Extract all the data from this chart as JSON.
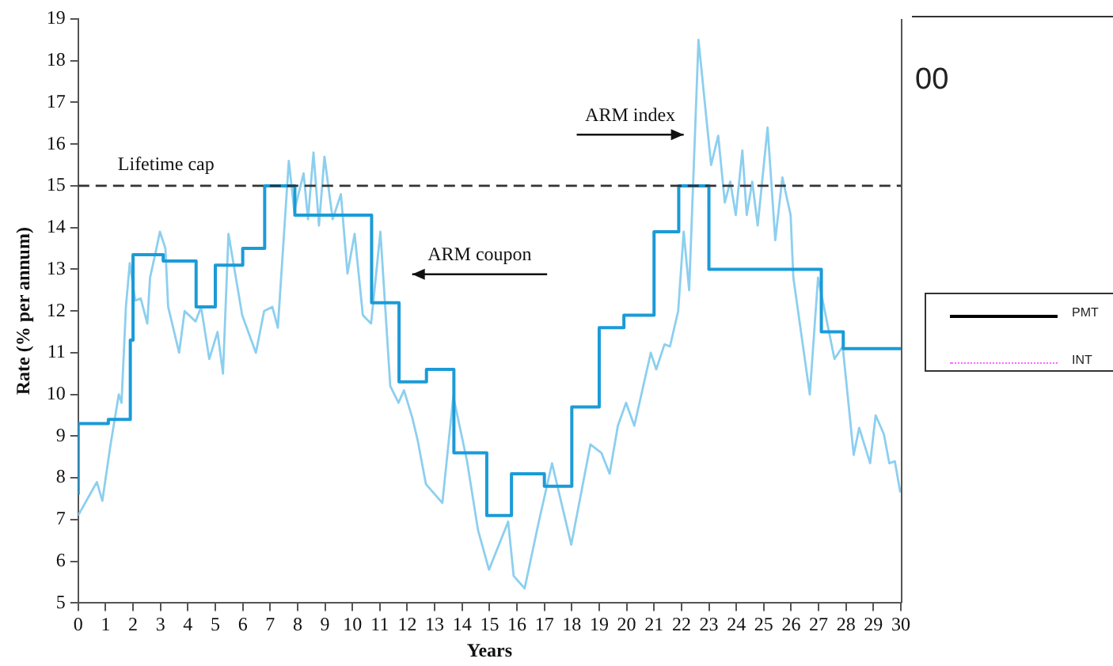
{
  "chart_data": {
    "type": "line",
    "xlabel": "Years",
    "ylabel": "Rate (% per annum)",
    "xlim": [
      0,
      30
    ],
    "xticks": [
      0,
      1,
      2,
      3,
      4,
      5,
      6,
      7,
      8,
      9,
      10,
      11,
      12,
      13,
      14,
      15,
      16,
      17,
      18,
      19,
      20,
      21,
      22,
      23,
      24,
      25,
      26,
      27,
      28,
      29,
      30
    ],
    "ylim": [
      5,
      19
    ],
    "yticks": [
      5,
      6,
      7,
      8,
      9,
      10,
      11,
      12,
      13,
      14,
      15,
      16,
      17,
      18,
      19
    ],
    "grid": false,
    "legend": false,
    "marker": "none",
    "series": [
      {
        "type": "step",
        "color": "#1b9bd7",
        "x": [
          0,
          1.1,
          1.9,
          2.0,
          3.1,
          4.3,
          5.0,
          6.0,
          6.8,
          7.9,
          10.7,
          11.7,
          12.7,
          13.7,
          14.9,
          15.8,
          17.0,
          18.0,
          19.0,
          19.9,
          21.0,
          21.9,
          23.0,
          27.1,
          27.9,
          28.9,
          30
        ],
        "values": [
          7.6,
          9.3,
          9.4,
          11.3,
          13.35,
          13.2,
          12.1,
          13.1,
          13.5,
          15,
          14.3,
          12.2,
          10.3,
          10.6,
          8.6,
          7.1,
          8.1,
          7.8,
          9.7,
          11.6,
          11.9,
          13.9,
          15,
          13.0,
          11.5,
          11.1,
          11.1
        ]
      },
      {
        "type": "line",
        "color": "#8ccfef",
        "x": [
          0,
          0.68,
          0.88,
          1.18,
          1.48,
          1.58,
          1.74,
          1.88,
          2.08,
          2.28,
          2.52,
          2.62,
          2.82,
          2.98,
          3.18,
          3.28,
          3.68,
          3.88,
          4.28,
          4.48,
          4.78,
          5.08,
          5.28,
          5.48,
          5.98,
          6.48,
          6.78,
          7.08,
          7.28,
          7.68,
          7.88,
          8.22,
          8.38,
          8.58,
          8.78,
          8.98,
          9.28,
          9.58,
          9.82,
          10.08,
          10.38,
          10.68,
          11.02,
          11.38,
          11.68,
          11.88,
          12.18,
          12.38,
          12.68,
          13.28,
          13.68,
          14.18,
          14.58,
          14.98,
          15.68,
          15.88,
          16.28,
          16.78,
          17.28,
          17.98,
          18.68,
          19.08,
          19.38,
          19.68,
          19.98,
          20.28,
          20.88,
          21.08,
          21.38,
          21.58,
          21.88,
          22.08,
          22.28,
          22.62,
          23.08,
          23.34,
          23.58,
          23.78,
          23.98,
          24.22,
          24.38,
          24.58,
          24.78,
          25.14,
          25.42,
          25.68,
          25.98,
          26.08,
          26.68,
          26.98,
          27.58,
          27.88,
          28.28,
          28.48,
          28.88,
          29.08,
          29.38,
          29.58,
          29.78,
          29.98
        ],
        "values": [
          7.1,
          7.9,
          7.45,
          8.8,
          10.0,
          9.8,
          12.1,
          13.15,
          12.25,
          12.3,
          11.7,
          12.8,
          13.4,
          13.9,
          13.5,
          12.1,
          11.0,
          12.0,
          11.75,
          12.1,
          10.85,
          11.5,
          10.5,
          13.85,
          11.9,
          11.0,
          12.0,
          12.1,
          11.6,
          15.6,
          14.4,
          15.3,
          14.2,
          15.8,
          14.05,
          15.7,
          14.2,
          14.8,
          12.9,
          13.85,
          11.9,
          11.7,
          13.9,
          10.2,
          9.8,
          10.1,
          9.45,
          8.9,
          7.85,
          7.4,
          9.95,
          8.4,
          6.75,
          5.8,
          6.95,
          5.65,
          5.35,
          6.9,
          8.35,
          6.4,
          8.8,
          8.6,
          8.1,
          9.25,
          9.8,
          9.25,
          11.0,
          10.6,
          11.2,
          11.15,
          12.0,
          13.9,
          12.5,
          18.5,
          15.5,
          16.2,
          14.6,
          15.1,
          14.3,
          15.85,
          14.3,
          15.1,
          14.05,
          16.4,
          13.7,
          15.2,
          14.3,
          12.8,
          10.0,
          12.8,
          10.85,
          11.15,
          8.55,
          9.2,
          8.35,
          9.5,
          9.05,
          8.35,
          8.4,
          7.65
        ]
      }
    ],
    "ref_lines": [
      {
        "axis": "y",
        "value": 15,
        "label": "Lifetime cap",
        "color": "#333333",
        "line_style": "dashed"
      }
    ],
    "annotations": [
      "ARM index",
      "ARM coupon",
      "00",
      "PMT",
      "INT"
    ]
  }
}
